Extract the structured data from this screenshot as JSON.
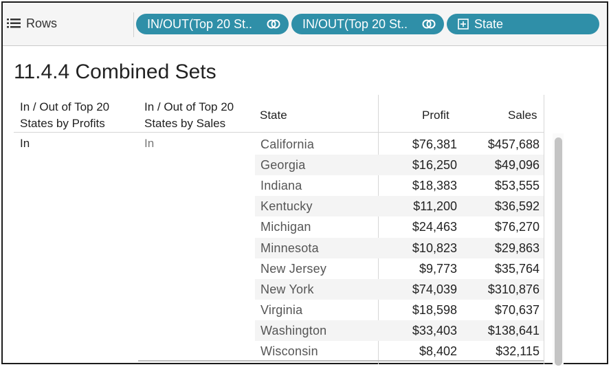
{
  "shelf": {
    "label": "Rows",
    "icon": "rows-list-icon",
    "pills": [
      {
        "label": "IN/OUT(Top 20 St..",
        "icon": "set-link-icon"
      },
      {
        "label": "IN/OUT(Top 20 St..",
        "icon": "set-link-icon"
      },
      {
        "label": "State",
        "icon": "plus-box-icon"
      }
    ],
    "pill_color": "#2f8fa8"
  },
  "sheet": {
    "title": "11.4.4 Combined Sets"
  },
  "table": {
    "headers": {
      "in_out_profits": "In / Out of Top 20 States by Profits",
      "in_out_profits_line1": "In / Out of Top 20",
      "in_out_profits_line2": "States by Profits",
      "in_out_sales_line1": "In / Out of Top 20",
      "in_out_sales_line2": "States by Sales",
      "state": "State",
      "profit": "Profit",
      "sales": "Sales"
    },
    "group_values": {
      "profits_set": "In",
      "sales_set": "In"
    },
    "rows": [
      {
        "state": "California",
        "profit": "$76,381",
        "sales": "$457,688"
      },
      {
        "state": "Georgia",
        "profit": "$16,250",
        "sales": "$49,096"
      },
      {
        "state": "Indiana",
        "profit": "$18,383",
        "sales": "$53,555"
      },
      {
        "state": "Kentucky",
        "profit": "$11,200",
        "sales": "$36,592"
      },
      {
        "state": "Michigan",
        "profit": "$24,463",
        "sales": "$76,270"
      },
      {
        "state": "Minnesota",
        "profit": "$10,823",
        "sales": "$29,863"
      },
      {
        "state": "New Jersey",
        "profit": "$9,773",
        "sales": "$35,764"
      },
      {
        "state": "New York",
        "profit": "$74,039",
        "sales": "$310,876"
      },
      {
        "state": "Virginia",
        "profit": "$18,598",
        "sales": "$70,637"
      },
      {
        "state": "Washington",
        "profit": "$33,403",
        "sales": "$138,641"
      },
      {
        "state": "Wisconsin",
        "profit": "$8,402",
        "sales": "$32,115"
      }
    ]
  }
}
